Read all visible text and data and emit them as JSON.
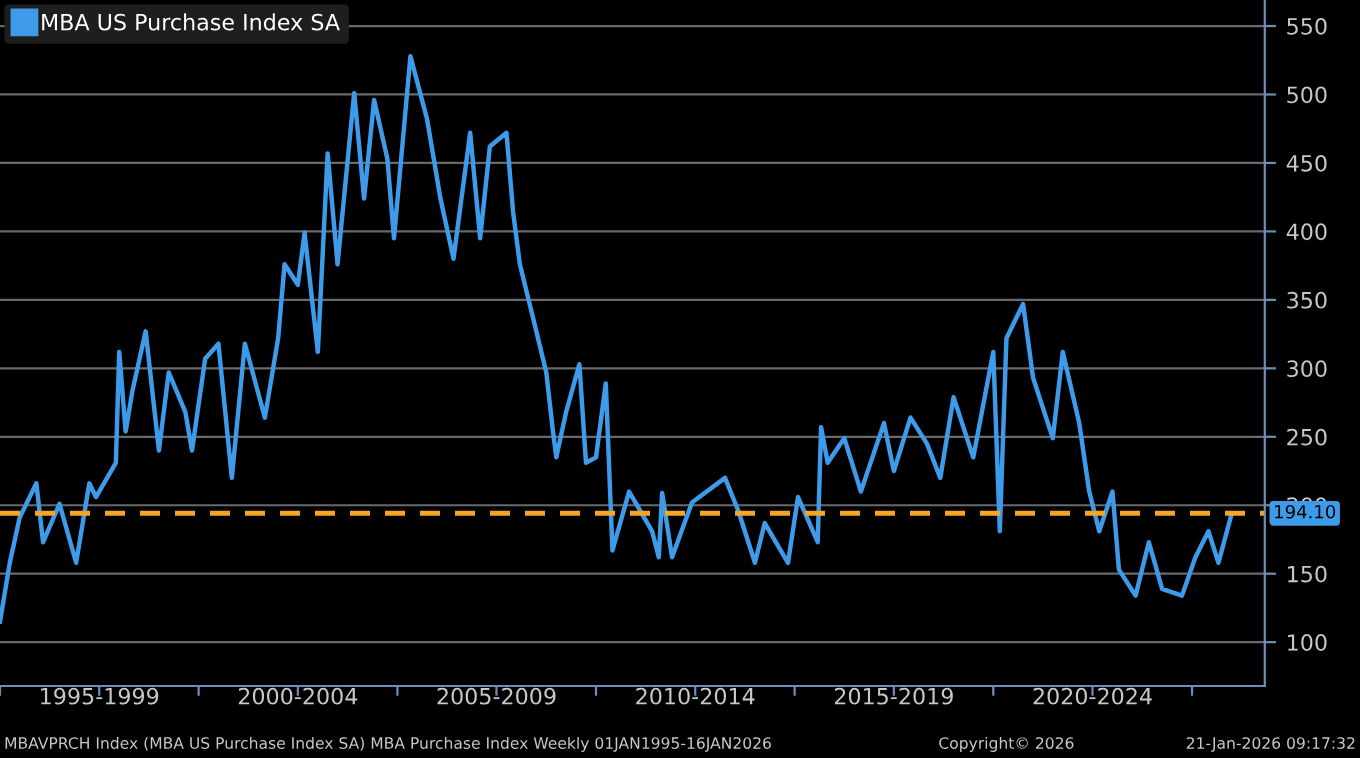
{
  "chart_data": {
    "type": "line",
    "x": [
      "1995-01",
      "1995-04",
      "1995-07",
      "1995-12",
      "1996-02",
      "1996-07",
      "1996-12",
      "1997-04",
      "1997-06",
      "1997-12",
      "1998-01",
      "1998-03",
      "1998-05",
      "1998-09",
      "1999-01",
      "1999-04",
      "1999-09",
      "1999-11",
      "2000-03",
      "2000-07",
      "2000-11",
      "2001-03",
      "2001-09",
      "2002-01",
      "2002-03",
      "2002-07",
      "2002-09",
      "2003-01",
      "2003-04",
      "2003-07",
      "2003-12",
      "2004-03",
      "2004-06",
      "2004-10",
      "2004-12",
      "2005-05",
      "2005-10",
      "2006-02",
      "2006-06",
      "2006-11",
      "2007-02",
      "2007-05",
      "2007-10",
      "2007-12",
      "2008-02",
      "2008-06",
      "2008-10",
      "2008-12",
      "2009-01",
      "2009-04",
      "2009-08",
      "2009-10",
      "2010-01",
      "2010-04",
      "2010-06",
      "2010-11",
      "2011-06",
      "2011-08",
      "2011-09",
      "2011-12",
      "2012-06",
      "2013-04",
      "2013-08",
      "2014-01",
      "2014-04",
      "2014-11",
      "2015-02",
      "2015-08",
      "2015-09",
      "2015-11",
      "2016-04",
      "2016-09",
      "2017-04",
      "2017-07",
      "2017-12",
      "2018-05",
      "2018-09",
      "2019-01",
      "2019-07",
      "2020-01",
      "2020-03",
      "2020-05",
      "2020-10",
      "2021-01",
      "2021-07",
      "2021-10",
      "2022-03",
      "2022-06",
      "2022-09",
      "2023-01",
      "2023-03",
      "2023-08",
      "2023-12",
      "2024-04",
      "2024-10",
      "2025-02",
      "2025-06",
      "2025-09",
      "2026-01"
    ],
    "series": [
      {
        "name": "MBA US Purchase Index SA",
        "color": "#3d9be9",
        "values": [
          115,
          158,
          191,
          216,
          173,
          201,
          158,
          216,
          206,
          231,
          312,
          254,
          283,
          327,
          240,
          297,
          268,
          240,
          307,
          318,
          220,
          318,
          264,
          322,
          376,
          361,
          399,
          312,
          457,
          376,
          501,
          424,
          496,
          453,
          395,
          528,
          482,
          424,
          380,
          472,
          395,
          462,
          472,
          414,
          376,
          337,
          297,
          254,
          235,
          268,
          303,
          231,
          235,
          289,
          167,
          210,
          181,
          162,
          209,
          162,
          202,
          220,
          196,
          158,
          187,
          158,
          206,
          173,
          257,
          231,
          249,
          210,
          260,
          225,
          264,
          245,
          220,
          279,
          235,
          312,
          181,
          322,
          347,
          293,
          249,
          312,
          260,
          210,
          181,
          210,
          153,
          134,
          173,
          139,
          134,
          162,
          181,
          158,
          194
        ]
      }
    ],
    "xlim": [
      "1995-01",
      "2026-11"
    ],
    "xticks": [
      {
        "value": "1995-01",
        "label": null
      },
      {
        "value": "1997-07",
        "label": "1995-1999"
      },
      {
        "value": "2000-01",
        "label": null
      },
      {
        "value": "2002-07",
        "label": "2000-2004"
      },
      {
        "value": "2005-01",
        "label": null
      },
      {
        "value": "2007-07",
        "label": "2005-2009"
      },
      {
        "value": "2010-01",
        "label": null
      },
      {
        "value": "2012-07",
        "label": "2010-2014"
      },
      {
        "value": "2015-01",
        "label": null
      },
      {
        "value": "2017-07",
        "label": "2015-2019"
      },
      {
        "value": "2020-01",
        "label": null
      },
      {
        "value": "2022-07",
        "label": "2020-2024"
      },
      {
        "value": "2025-01",
        "label": null
      }
    ],
    "ylim": [
      68,
      569
    ],
    "yticks": [
      100,
      150,
      200,
      250,
      300,
      350,
      400,
      450,
      500,
      550
    ],
    "grid": "y",
    "legend": "top left",
    "ref_lines": [
      {
        "axis": "y",
        "value": 194.1,
        "label": "194.10",
        "color": "#f5a623",
        "line_style": "dashed"
      }
    ],
    "annotations": [
      "MBAVPRCH Index (MBA US Purchase Index SA) MBA Purchase Index Weekly 01JAN1995-16JAN2026",
      "Copyright© 2026",
      "21-Jan-2026 09:17:32"
    ]
  }
}
